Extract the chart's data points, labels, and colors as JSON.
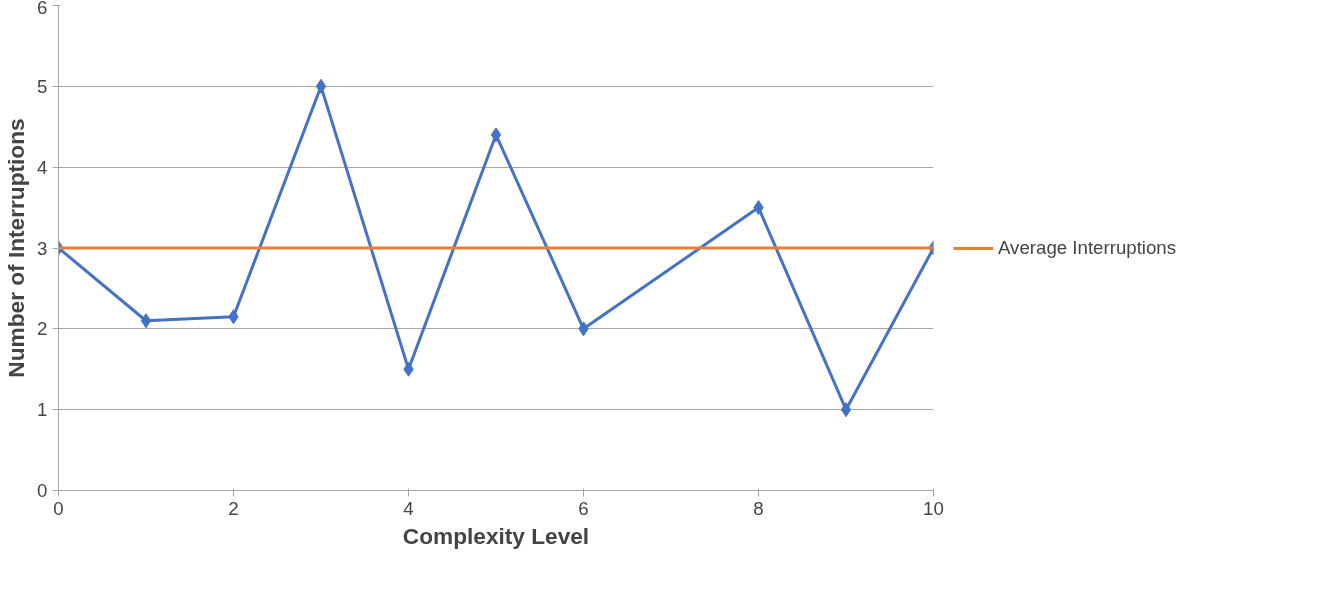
{
  "chart_data": {
    "type": "line",
    "xlabel": "Complexity Level",
    "ylabel": "Number of Interruptions",
    "xlim": [
      0,
      10
    ],
    "xticks": [
      0,
      2,
      4,
      6,
      8,
      10
    ],
    "ylim": [
      0,
      6
    ],
    "yticks": [
      0,
      1,
      2,
      3,
      4,
      5,
      6
    ],
    "grid": "y",
    "legend": "right",
    "series": [
      {
        "color": "#4472c4",
        "marker": "diamond",
        "x": [
          0,
          1,
          2,
          3,
          4,
          5,
          6,
          8,
          9,
          10
        ],
        "values": [
          3,
          2.1,
          2.15,
          5,
          1.5,
          4.4,
          2,
          3.5,
          1,
          3
        ]
      },
      {
        "name": "Average Interruptions",
        "color": "#ed7d31",
        "marker": "none",
        "x": [
          0,
          10
        ],
        "values": [
          3,
          3
        ]
      }
    ]
  }
}
